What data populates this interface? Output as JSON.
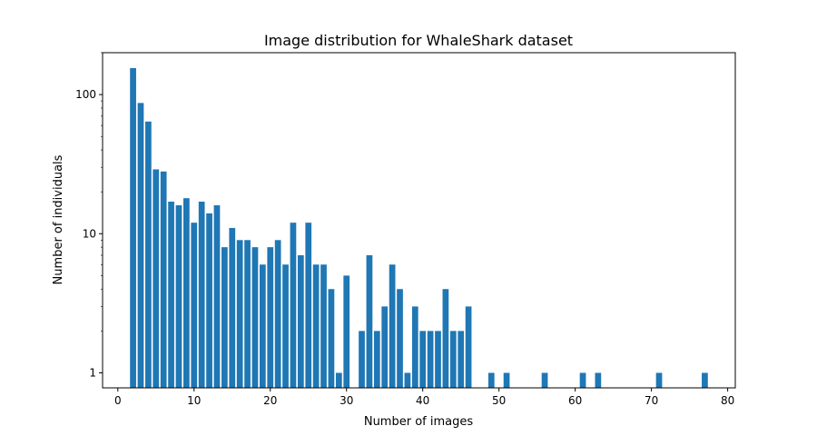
{
  "chart_data": {
    "type": "bar",
    "title": "Image distribution for WhaleShark dataset",
    "xlabel": "Number of images",
    "ylabel": "Number of individuals",
    "yscale": "log",
    "xlim": [
      -2,
      81
    ],
    "ylim": [
      0.78,
      200
    ],
    "xticks": [
      0,
      10,
      20,
      30,
      40,
      50,
      60,
      70,
      80
    ],
    "yticks": [
      1,
      10,
      100
    ],
    "grid": false,
    "color": "#1f77b4",
    "bar_width": 0.8,
    "x": [
      2,
      3,
      4,
      5,
      6,
      7,
      8,
      9,
      10,
      11,
      12,
      13,
      14,
      15,
      16,
      17,
      18,
      19,
      20,
      21,
      22,
      23,
      24,
      25,
      26,
      27,
      28,
      29,
      30,
      32,
      33,
      34,
      35,
      36,
      37,
      38,
      39,
      40,
      41,
      42,
      43,
      44,
      45,
      46,
      49,
      51,
      56,
      61,
      63,
      71,
      77
    ],
    "values": [
      155,
      87,
      64,
      29,
      28,
      17,
      16,
      18,
      12,
      17,
      14,
      16,
      8,
      11,
      9,
      9,
      8,
      6,
      8,
      9,
      6,
      12,
      7,
      12,
      6,
      6,
      4,
      1,
      5,
      2,
      7,
      2,
      3,
      6,
      4,
      1,
      3,
      2,
      2,
      2,
      4,
      2,
      2,
      3,
      1,
      1,
      1,
      1,
      1,
      1,
      1
    ]
  }
}
